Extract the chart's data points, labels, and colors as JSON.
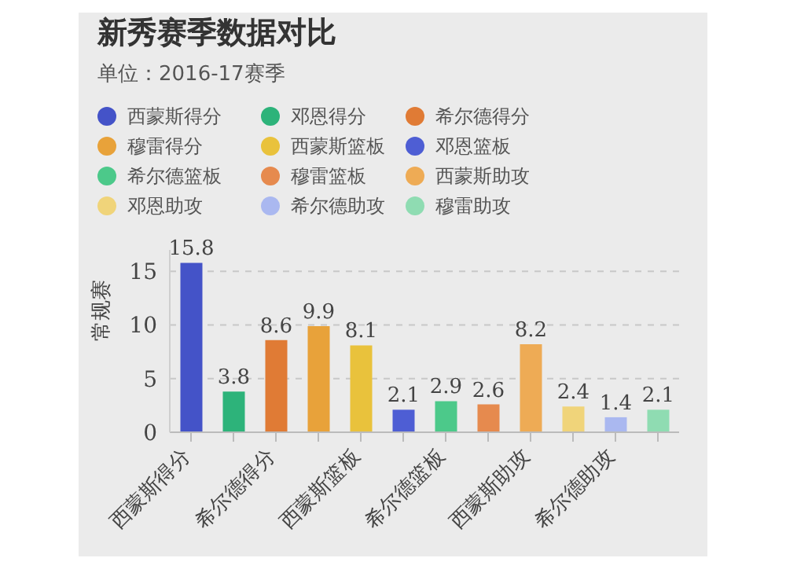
{
  "chart_data": {
    "type": "bar",
    "title": "新秀赛季数据对比",
    "subtitle": "单位：2016-17赛季",
    "ylabel": "常规赛",
    "categories": [
      "西蒙斯得分",
      null,
      "希尔德得分",
      null,
      "西蒙斯篮板",
      null,
      "希尔德篮板",
      null,
      "西蒙斯助攻",
      null,
      "希尔德助攻",
      null
    ],
    "series": [
      {
        "name": "西蒙斯得分",
        "color": "#4453c8",
        "values": [
          15.8,
          null,
          null,
          null,
          null,
          null,
          null,
          null,
          null,
          null,
          null,
          null
        ]
      },
      {
        "name": "邓恩得分",
        "color": "#2db37a",
        "values": [
          null,
          3.8,
          null,
          null,
          null,
          null,
          null,
          null,
          null,
          null,
          null,
          null
        ]
      },
      {
        "name": "希尔德得分",
        "color": "#e07b35",
        "values": [
          null,
          null,
          8.6,
          null,
          null,
          null,
          null,
          null,
          null,
          null,
          null,
          null
        ]
      },
      {
        "name": "穆雷得分",
        "color": "#e8a23a",
        "values": [
          null,
          null,
          null,
          9.9,
          null,
          null,
          null,
          null,
          null,
          null,
          null,
          null
        ]
      },
      {
        "name": "西蒙斯篮板",
        "color": "#e9c23c",
        "values": [
          null,
          null,
          null,
          null,
          8.1,
          null,
          null,
          null,
          null,
          null,
          null,
          null
        ]
      },
      {
        "name": "邓恩篮板",
        "color": "#4e5ed4",
        "values": [
          null,
          null,
          null,
          null,
          null,
          2.1,
          null,
          null,
          null,
          null,
          null,
          null
        ]
      },
      {
        "name": "希尔德篮板",
        "color": "#4cc98a",
        "values": [
          null,
          null,
          null,
          null,
          null,
          null,
          2.9,
          null,
          null,
          null,
          null,
          null
        ]
      },
      {
        "name": "穆雷篮板",
        "color": "#e68a4e",
        "values": [
          null,
          null,
          null,
          null,
          null,
          null,
          null,
          2.6,
          null,
          null,
          null,
          null
        ]
      },
      {
        "name": "西蒙斯助攻",
        "color": "#eeab55",
        "values": [
          null,
          null,
          null,
          null,
          null,
          null,
          null,
          null,
          8.2,
          null,
          null,
          null
        ]
      },
      {
        "name": "邓恩助攻",
        "color": "#f0d47a",
        "values": [
          null,
          null,
          null,
          null,
          null,
          null,
          null,
          null,
          null,
          2.4,
          null,
          null
        ]
      },
      {
        "name": "希尔德助攻",
        "color": "#aab8f0",
        "values": [
          null,
          null,
          null,
          null,
          null,
          null,
          null,
          null,
          null,
          null,
          1.4,
          null
        ]
      },
      {
        "name": "穆雷助攻",
        "color": "#8fdcb2",
        "values": [
          null,
          null,
          null,
          null,
          null,
          null,
          null,
          null,
          null,
          null,
          null,
          2.1
        ]
      }
    ],
    "stacked": true,
    "ylim": [
      0,
      17
    ],
    "yticks": [
      0,
      5,
      10,
      15
    ],
    "grid": "y",
    "legend": "top",
    "data_labels": true
  }
}
